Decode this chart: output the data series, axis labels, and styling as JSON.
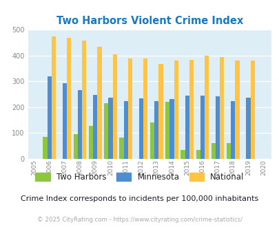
{
  "title": "Two Harbors Violent Crime Index",
  "years": [
    2005,
    2006,
    2007,
    2008,
    2009,
    2010,
    2011,
    2012,
    2013,
    2014,
    2015,
    2016,
    2017,
    2018,
    2019,
    2020
  ],
  "two_harbors": [
    null,
    85,
    null,
    95,
    128,
    215,
    83,
    null,
    140,
    220,
    35,
    35,
    60,
    60,
    null,
    null
  ],
  "minnesota": [
    null,
    318,
    292,
    265,
    248,
    237,
    224,
    234,
    224,
    231,
    245,
    245,
    241,
    222,
    237,
    null
  ],
  "national": [
    null,
    473,
    468,
    457,
    432,
    405,
    387,
    387,
    368,
    379,
    384,
    398,
    394,
    381,
    379,
    null
  ],
  "two_harbors_color": "#8dc63f",
  "minnesota_color": "#4e8dcf",
  "national_color": "#ffc444",
  "background_color": "#ddeef6",
  "ylim": [
    0,
    500
  ],
  "yticks": [
    0,
    100,
    200,
    300,
    400,
    500
  ],
  "subtitle": "Crime Index corresponds to incidents per 100,000 inhabitants",
  "footer": "© 2025 CityRating.com - https://www.cityrating.com/crime-statistics/",
  "bar_width": 0.28
}
